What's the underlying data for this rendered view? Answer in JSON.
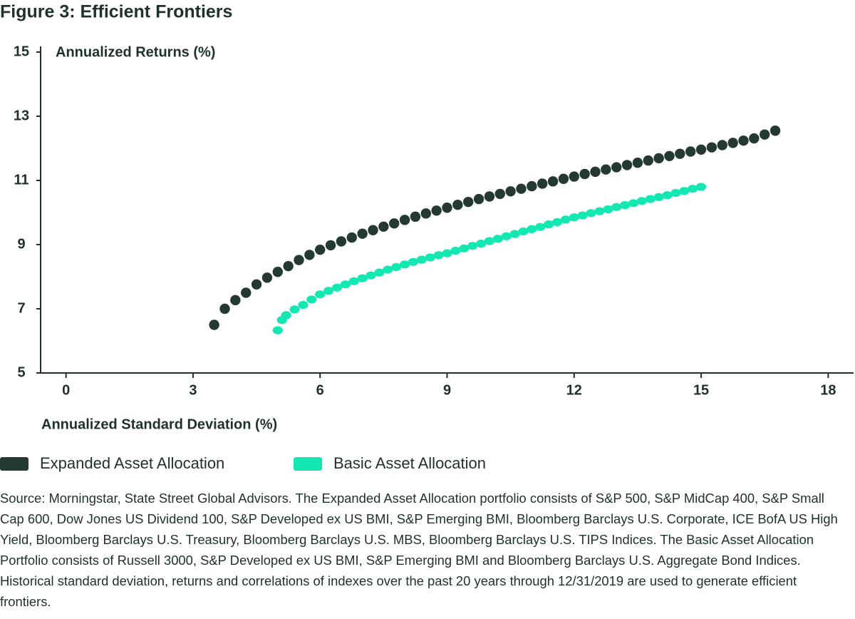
{
  "chart_data": {
    "type": "scatter",
    "title": "Figure 3: Efficient Frontiers",
    "y_label": "Annualized Returns (%)",
    "x_label": "Annualized Standard Deviation (%)",
    "xlim": [
      -0.6,
      18.6
    ],
    "xticks": [
      0,
      3,
      6,
      9,
      12,
      15,
      18
    ],
    "ylim": [
      5,
      15
    ],
    "yticks": [
      5,
      7,
      9,
      11,
      13,
      15
    ],
    "series": [
      {
        "name": "Expanded Asset Allocation",
        "color": "#243a31",
        "x": [
          3.5,
          3.75,
          4.0,
          4.25,
          4.5,
          4.75,
          5.0,
          5.25,
          5.5,
          5.75,
          6.0,
          6.25,
          6.5,
          6.75,
          7.0,
          7.25,
          7.5,
          7.75,
          8.0,
          8.25,
          8.5,
          8.75,
          9.0,
          9.25,
          9.5,
          9.75,
          10.0,
          10.25,
          10.5,
          10.75,
          11.0,
          11.25,
          11.5,
          11.75,
          12.0,
          12.25,
          12.5,
          12.75,
          13.0,
          13.25,
          13.5,
          13.75,
          14.0,
          14.25,
          14.5,
          14.75,
          15.0,
          15.25,
          15.5,
          15.75,
          16.0,
          16.25,
          16.5,
          16.75
        ],
        "values": [
          6.5,
          7.0,
          7.27,
          7.5,
          7.76,
          7.97,
          8.15,
          8.33,
          8.52,
          8.68,
          8.84,
          8.98,
          9.1,
          9.22,
          9.34,
          9.45,
          9.56,
          9.66,
          9.77,
          9.87,
          9.97,
          10.06,
          10.15,
          10.24,
          10.33,
          10.42,
          10.5,
          10.58,
          10.66,
          10.74,
          10.82,
          10.9,
          10.97,
          11.05,
          11.12,
          11.2,
          11.27,
          11.34,
          11.41,
          11.48,
          11.55,
          11.62,
          11.69,
          11.76,
          11.83,
          11.9,
          11.96,
          12.03,
          12.1,
          12.17,
          12.24,
          12.31,
          12.43,
          12.55
        ]
      },
      {
        "name": "Basic Asset Allocation",
        "color": "#14e8b2",
        "x": [
          5.0,
          5.1,
          5.2,
          5.4,
          5.6,
          5.8,
          6.0,
          6.2,
          6.4,
          6.6,
          6.8,
          7.0,
          7.2,
          7.4,
          7.6,
          7.8,
          8.0,
          8.2,
          8.4,
          8.6,
          8.8,
          9.0,
          9.2,
          9.4,
          9.6,
          9.8,
          10.0,
          10.2,
          10.4,
          10.6,
          10.8,
          11.0,
          11.2,
          11.4,
          11.6,
          11.8,
          12.0,
          12.2,
          12.4,
          12.6,
          12.8,
          13.0,
          13.2,
          13.4,
          13.6,
          13.8,
          14.0,
          14.2,
          14.4,
          14.6,
          14.8,
          15.0
        ],
        "values": [
          6.33,
          6.65,
          6.8,
          6.98,
          7.12,
          7.29,
          7.45,
          7.56,
          7.66,
          7.76,
          7.86,
          7.95,
          8.04,
          8.13,
          8.22,
          8.3,
          8.38,
          8.46,
          8.53,
          8.6,
          8.67,
          8.73,
          8.81,
          8.88,
          8.96,
          9.03,
          9.11,
          9.18,
          9.26,
          9.33,
          9.41,
          9.48,
          9.55,
          9.63,
          9.7,
          9.78,
          9.85,
          9.91,
          9.98,
          10.04,
          10.1,
          10.17,
          10.23,
          10.29,
          10.36,
          10.42,
          10.48,
          10.54,
          10.61,
          10.67,
          10.74,
          10.8
        ]
      }
    ],
    "note": "Source: Morningstar, State Street Global Advisors. The Expanded Asset Allocation portfolio consists of S&P 500, S&P MidCap 400, S&P Small Cap 600, Dow Jones US Dividend 100, S&P Developed ex US BMI, S&P Emerging BMI, Bloomberg Barclays U.S. Corporate, ICE BofA US High Yield, Bloomberg Barclays U.S. Treasury, Bloomberg Barclays U.S. MBS, Bloomberg Barclays U.S. TIPS Indices. The Basic Asset Allocation Portfolio consists of Russell 3000, S&P Developed ex US BMI, S&P Emerging BMI and Bloomberg Barclays U.S. Aggregate Bond Indices. Historical standard deviation, returns and correlations of indexes over the past 20 years through 12/31/2019 are used to generate efficient frontiers."
  }
}
